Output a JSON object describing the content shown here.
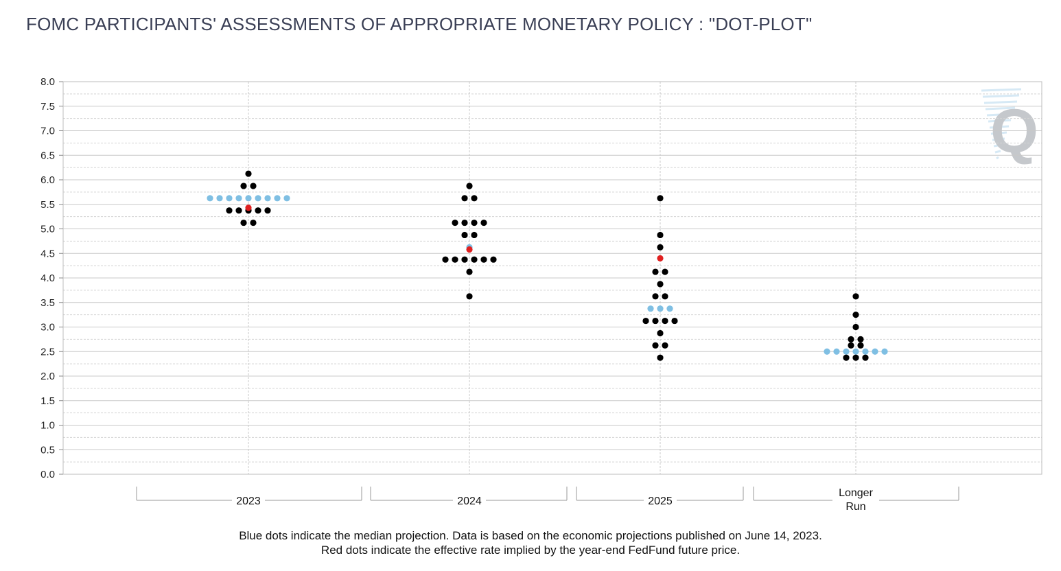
{
  "title": "FOMC PARTICIPANTS' ASSESSMENTS OF APPROPRIATE MONETARY POLICY : \"DOT-PLOT\"",
  "notes": {
    "line1": "Blue dots indicate the median projection. Data is based on the economic projections published on June 14, 2023.",
    "line2": "Red dots indicate the effective rate implied by the year-end FedFund future price."
  },
  "watermark": "Q",
  "colors": {
    "dot": "#000000",
    "median": "#7fbfe3",
    "implied": "#e02020",
    "grid": "#c8c8c8",
    "watermark": "#c5c8cc"
  },
  "chart_data": {
    "type": "scatter",
    "title": "FOMC PARTICIPANTS' ASSESSMENTS OF APPROPRIATE MONETARY POLICY : \"DOT-PLOT\"",
    "ylim": [
      0,
      8
    ],
    "yticks": [
      "0.0",
      "0.5",
      "1.0",
      "1.5",
      "2.0",
      "2.5",
      "3.0",
      "3.5",
      "4.0",
      "4.5",
      "5.0",
      "5.5",
      "6.0",
      "6.5",
      "7.0",
      "7.5",
      "8.0"
    ],
    "grid": true,
    "categories": [
      {
        "label": "2023",
        "dots": [
          [
            6.125,
            1
          ],
          [
            5.875,
            2
          ],
          [
            5.625,
            9
          ],
          [
            5.375,
            5
          ],
          [
            5.125,
            2
          ]
        ],
        "median": 5.625,
        "implied": 5.43
      },
      {
        "label": "2024",
        "dots": [
          [
            5.875,
            1
          ],
          [
            5.625,
            2
          ],
          [
            5.125,
            4
          ],
          [
            4.875,
            2
          ],
          [
            4.625,
            1
          ],
          [
            4.375,
            6
          ],
          [
            4.125,
            1
          ],
          [
            3.625,
            1
          ]
        ],
        "median": 4.625,
        "implied": 4.58
      },
      {
        "label": "2025",
        "dots": [
          [
            5.625,
            1
          ],
          [
            4.875,
            1
          ],
          [
            4.625,
            1
          ],
          [
            4.125,
            2
          ],
          [
            3.875,
            1
          ],
          [
            3.625,
            2
          ],
          [
            3.375,
            3
          ],
          [
            3.125,
            4
          ],
          [
            2.875,
            1
          ],
          [
            2.625,
            2
          ],
          [
            2.375,
            1
          ]
        ],
        "median": 3.375,
        "implied": 4.4
      },
      {
        "label": "Longer Run",
        "label_lines": [
          "Longer",
          "Run"
        ],
        "dots": [
          [
            3.625,
            1
          ],
          [
            3.25,
            1
          ],
          [
            3.0,
            1
          ],
          [
            2.75,
            2
          ],
          [
            2.625,
            2
          ],
          [
            2.5,
            7
          ],
          [
            2.375,
            3
          ]
        ],
        "median": 2.5,
        "implied": null
      }
    ]
  }
}
